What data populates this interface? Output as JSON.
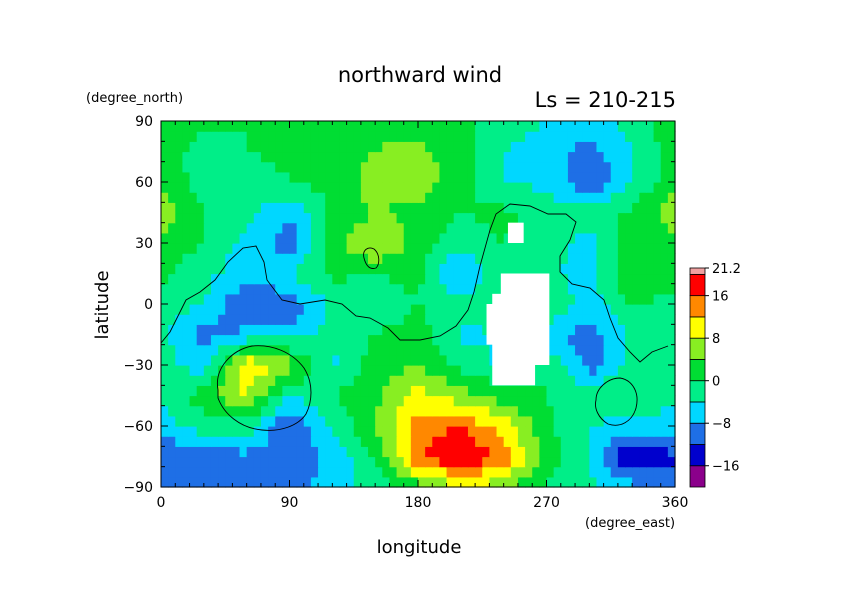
{
  "chart_data": {
    "type": "heatmap",
    "title": "northward wind",
    "subtitle": "Ls = 210-215",
    "xlabel": "longitude",
    "ylabel": "latitude",
    "xunit": "(degree_east)",
    "yunit": "(degree_north)",
    "xlim": [
      0,
      360
    ],
    "ylim": [
      -90,
      90
    ],
    "xticks": [
      0,
      90,
      180,
      270,
      360
    ],
    "yticks": [
      -90,
      -60,
      -30,
      0,
      30,
      60,
      90
    ],
    "xtick_labels": [
      "0",
      "90",
      "180",
      "270",
      "360"
    ],
    "ytick_labels": [
      "−90",
      "−60",
      "−30",
      "0",
      "30",
      "60",
      "90"
    ],
    "colorbar": {
      "labels": [
        "21.2",
        "16",
        "8",
        "0",
        "−8",
        "−16"
      ],
      "bounds": [
        -20,
        -16,
        -12,
        -8,
        -4,
        0,
        4,
        8,
        12,
        16,
        20,
        21.2
      ],
      "colors": [
        "#8b008b",
        "#0000cd",
        "#1e6fe6",
        "#00d7ff",
        "#00ee88",
        "#00dd33",
        "#88ee22",
        "#ffff00",
        "#ff8800",
        "#ff0000",
        "#f0a0a0"
      ]
    },
    "field": {
      "lon": [
        0,
        30,
        60,
        90,
        120,
        150,
        180,
        210,
        240,
        270,
        300,
        330,
        360
      ],
      "lat": [
        -90,
        -75,
        -60,
        -45,
        -30,
        -15,
        0,
        15,
        30,
        45,
        60,
        75,
        90
      ],
      "values": [
        [
          -12,
          -10,
          -9,
          -10,
          -6,
          -2,
          2,
          8,
          5,
          -1,
          -3,
          -6,
          -12
        ],
        [
          -12,
          -10,
          -9,
          -11,
          -7,
          0,
          16,
          20,
          15,
          2,
          -4,
          -17,
          -12
        ],
        [
          -6,
          -2,
          -2,
          -12,
          -4,
          4,
          14,
          16,
          10,
          1,
          -4,
          -6,
          -6
        ],
        [
          -3,
          2,
          8,
          -4,
          0,
          3,
          10,
          6,
          2,
          0,
          -2,
          0,
          -3
        ],
        [
          -2,
          -6,
          12,
          6,
          -5,
          2,
          4,
          -1,
          -5,
          0,
          -10,
          -2,
          -2
        ],
        [
          -3,
          -10,
          -7,
          -6,
          -3,
          0,
          2,
          -5,
          -4,
          -7,
          -10,
          -3,
          -3
        ],
        [
          -1,
          -4,
          -12,
          -11,
          -3,
          -3,
          0,
          -2,
          0,
          0,
          -6,
          0,
          -1
        ],
        [
          1,
          -3,
          -6,
          -4,
          1,
          0,
          1,
          -10,
          0,
          -3,
          -6,
          4,
          1
        ],
        [
          3,
          0,
          -6,
          -10,
          2,
          9,
          2,
          -2,
          0,
          -2,
          -6,
          2,
          3
        ],
        [
          6,
          0,
          -2,
          -8,
          1,
          4,
          3,
          0,
          1,
          -2,
          -2,
          1,
          6
        ],
        [
          3,
          -2,
          -3,
          0,
          1,
          6,
          6,
          2,
          -4,
          -5,
          -12,
          -4,
          3
        ],
        [
          2,
          -2,
          0,
          1,
          3,
          4,
          5,
          2,
          -4,
          -6,
          -10,
          -4,
          2
        ],
        [
          3,
          1,
          0,
          1,
          2,
          3,
          3,
          1,
          -2,
          -4,
          -6,
          -2,
          3
        ]
      ],
      "missing_regions": [
        {
          "lon": [
            232,
            262
          ],
          "lat": [
            -40,
            5
          ]
        },
        {
          "lon": [
            238,
            272
          ],
          "lat": [
            -30,
            15
          ]
        },
        {
          "lon": [
            228,
            250
          ],
          "lat": [
            -20,
            0
          ]
        },
        {
          "lon": [
            243,
            254
          ],
          "lat": [
            30,
            40
          ]
        }
      ]
    }
  }
}
